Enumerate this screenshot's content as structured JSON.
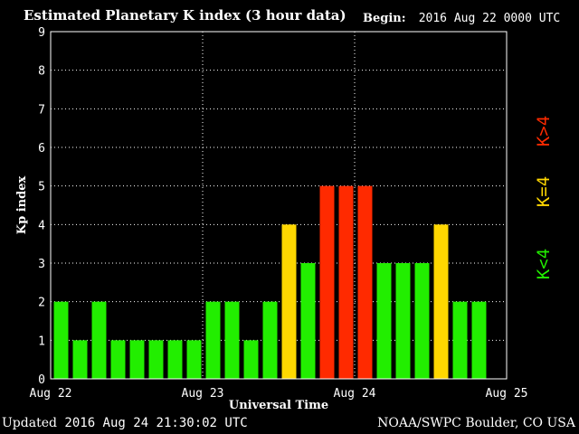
{
  "header": {
    "title": "Estimated Planetary K index (3 hour data)",
    "begin_label": "Begin:",
    "begin_value": "2016 Aug 22 0000 UTC"
  },
  "footer": {
    "updated_label": "Updated",
    "updated_value": "2016 Aug 24 21:30:02 UTC",
    "credit": "NOAA/SWPC Boulder, CO USA"
  },
  "colors": {
    "below_4": "#22ee00",
    "equal_4": "#ffd700",
    "above_4": "#ff2a00",
    "grid": "#ffffff",
    "background": "#000000"
  },
  "chart_data": {
    "type": "bar",
    "title": "Estimated Planetary K index (3 hour data)",
    "xlabel": "Universal Time",
    "ylabel": "Kp index",
    "ylim": [
      0,
      9
    ],
    "y_ticks": [
      "0",
      "1",
      "2",
      "3",
      "4",
      "5",
      "6",
      "7",
      "8",
      "9"
    ],
    "x_ticks": [
      "Aug 22",
      "Aug 23",
      "Aug 24",
      "Aug 25"
    ],
    "grid": true,
    "slots_total": 24,
    "values": [
      2,
      1,
      2,
      1,
      1,
      1,
      1,
      1,
      2,
      2,
      1,
      2,
      4,
      3,
      5,
      5,
      5,
      3,
      3,
      3,
      4,
      2,
      2
    ],
    "legend": [
      {
        "label": "K<4",
        "color": "#22ee00"
      },
      {
        "label": "K=4",
        "color": "#ffd700"
      },
      {
        "label": "K>4",
        "color": "#ff2a00"
      }
    ],
    "legend_placement": "right"
  }
}
